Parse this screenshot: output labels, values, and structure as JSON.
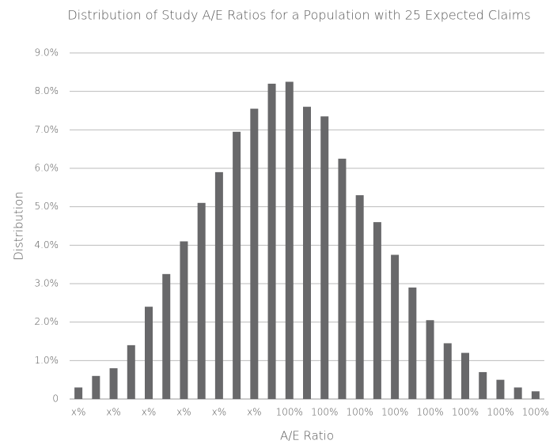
{
  "chart_data": {
    "type": "bar",
    "title": "Distribution of Study A/E Ratios for a Population with 25 Expected Claims",
    "x_label": "A/E Ratio",
    "y_label": "Distribution",
    "categories": [
      "x%",
      null,
      "x%",
      null,
      "x%",
      null,
      "x%",
      null,
      "x%",
      null,
      "x%",
      null,
      "100%",
      null,
      "100%",
      null,
      "100%",
      null,
      "100%",
      null,
      "100%",
      null,
      "100%",
      null,
      "100%",
      null,
      "100%"
    ],
    "values": [
      0.3,
      0.6,
      0.8,
      1.4,
      2.4,
      3.25,
      4.1,
      5.1,
      5.9,
      6.95,
      7.55,
      8.2,
      8.25,
      7.6,
      7.35,
      6.25,
      5.3,
      4.6,
      3.75,
      2.9,
      2.05,
      1.45,
      1.2,
      0.7,
      0.5,
      0.3,
      0.2
    ],
    "color": "#68686a",
    "ylim": [
      0,
      9
    ],
    "yticks": [
      0,
      {
        "value": 1,
        "label": "1.0%"
      },
      {
        "value": 2,
        "label": "2.0%"
      },
      {
        "value": 3,
        "label": "3.0%"
      },
      {
        "value": 4,
        "label": "4.0%"
      },
      {
        "value": 5,
        "label": "5.0%"
      },
      {
        "value": 6,
        "label": "6.0%"
      },
      {
        "value": 7,
        "label": "7.0%"
      },
      {
        "value": 8,
        "label": "8.0%"
      },
      {
        "value": 9,
        "label": "9.0%"
      }
    ],
    "grid": true
  }
}
